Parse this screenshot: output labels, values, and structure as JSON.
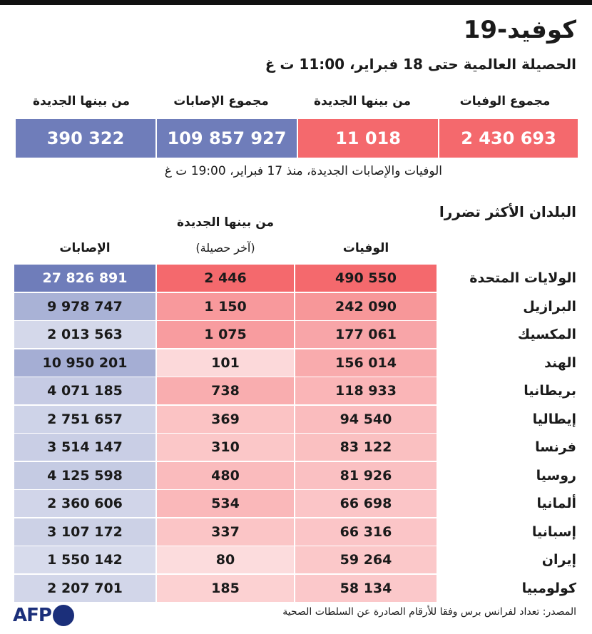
{
  "title": "كوفيد-19",
  "subtitle": "الحصيلة العالمية حتى 18 فبراير، 11:00 ت غ",
  "summary": {
    "total_deaths_label": "مجموع الوفيات",
    "total_deaths": "2 430 693",
    "new_deaths_label": "من بينها الجديدة",
    "new_deaths": "11 018",
    "total_cases_label": "مجموع الإصابات",
    "total_cases": "109 857 927",
    "new_cases_label": "من بينها الجديدة",
    "new_cases": "390 322",
    "since_note": "الوفيات والإصابات الجديدة، منذ 17 فبراير، 19:00 ت غ"
  },
  "colors": {
    "deaths": "#f4696d",
    "cases": "#6f7dba"
  },
  "chart_data": {
    "type": "table",
    "title": "البلدان الأكثر تضررا",
    "columns": [
      "الوفيات",
      "من بينها الجديدة",
      "(آخر حصيلة)",
      "الإصابات"
    ],
    "header": {
      "deaths": "الوفيات",
      "new": "من بينها الجديدة",
      "new_sub": "(آخر حصيلة)",
      "cases": "الإصابات"
    },
    "rows": [
      {
        "country": "الولايات المتحدة",
        "deaths": 490550,
        "new": 2446,
        "cases": 27826891,
        "deaths_text": "490 550",
        "new_text": "2 446",
        "cases_text": "27 826 891"
      },
      {
        "country": "البرازيل",
        "deaths": 242090,
        "new": 1150,
        "cases": 9978747,
        "deaths_text": "242 090",
        "new_text": "1 150",
        "cases_text": "9 978 747"
      },
      {
        "country": "المكسيك",
        "deaths": 177061,
        "new": 1075,
        "cases": 2013563,
        "deaths_text": "177 061",
        "new_text": "1 075",
        "cases_text": "2 013 563"
      },
      {
        "country": "الهند",
        "deaths": 156014,
        "new": 101,
        "cases": 10950201,
        "deaths_text": "156 014",
        "new_text": "101",
        "cases_text": "10 950 201"
      },
      {
        "country": "بريطانيا",
        "deaths": 118933,
        "new": 738,
        "cases": 4071185,
        "deaths_text": "118 933",
        "new_text": "738",
        "cases_text": "4 071 185"
      },
      {
        "country": "إيطاليا",
        "deaths": 94540,
        "new": 369,
        "cases": 2751657,
        "deaths_text": "94 540",
        "new_text": "369",
        "cases_text": "2 751 657"
      },
      {
        "country": "فرنسا",
        "deaths": 83122,
        "new": 310,
        "cases": 3514147,
        "deaths_text": "83 122",
        "new_text": "310",
        "cases_text": "3 514 147"
      },
      {
        "country": "روسيا",
        "deaths": 81926,
        "new": 480,
        "cases": 4125598,
        "deaths_text": "81 926",
        "new_text": "480",
        "cases_text": "4 125 598"
      },
      {
        "country": "ألمانيا",
        "deaths": 66698,
        "new": 534,
        "cases": 2360606,
        "deaths_text": "66 698",
        "new_text": "534",
        "cases_text": "2 360 606"
      },
      {
        "country": "إسبانيا",
        "deaths": 66316,
        "new": 337,
        "cases": 3107172,
        "deaths_text": "66 316",
        "new_text": "337",
        "cases_text": "3 107 172"
      },
      {
        "country": "إيران",
        "deaths": 59264,
        "new": 80,
        "cases": 1550142,
        "deaths_text": "59 264",
        "new_text": "80",
        "cases_text": "1 550 142"
      },
      {
        "country": "كولومبيا",
        "deaths": 58134,
        "new": 185,
        "cases": 2207701,
        "deaths_text": "58 134",
        "new_text": "185",
        "cases_text": "2 207 701"
      }
    ]
  },
  "source": "المصدر: تعداد لفرانس برس وفقا للأرقام الصادرة عن السلطات الصحية",
  "logo": "AFP"
}
